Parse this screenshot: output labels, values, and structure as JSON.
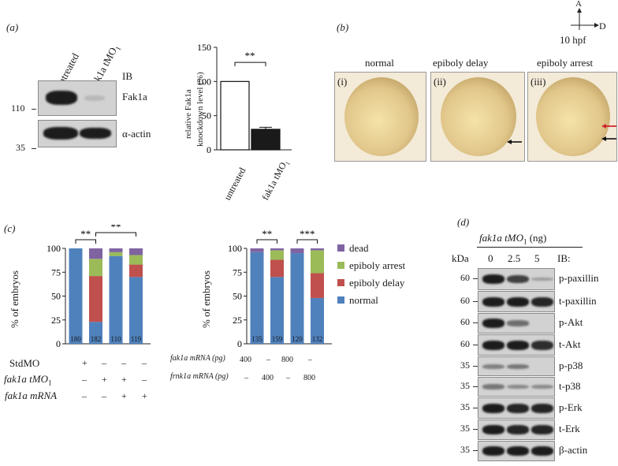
{
  "panel_a": {
    "label": "(a)",
    "blot": {
      "col_labels": [
        "untreated",
        "fak1a tMO"
      ],
      "col2_sub": "1",
      "ib_label": "IB",
      "row_labels": [
        "Fak1a",
        "α-actin"
      ],
      "mw_markers": [
        "110",
        "35"
      ]
    },
    "chart": {
      "ylabel_line1": "relative Fak1a",
      "ylabel_line2": "knockdown level (%)",
      "significance": "**"
    }
  },
  "panel_b": {
    "label": "(b)",
    "axis_up": "A",
    "axis_right": "D",
    "stage": "10 hpf",
    "titles": [
      "normal",
      "epiboly delay",
      "epiboly arrest"
    ],
    "numerals": [
      "(i)",
      "(ii)",
      "(iii)"
    ]
  },
  "panel_c": {
    "label": "(c)",
    "ylabel": "% of embryos",
    "colors": {
      "dead": "#8064a2",
      "arrest": "#9bbb59",
      "delay": "#c0504d",
      "normal": "#4f81bd"
    },
    "legend": [
      "dead",
      "epiboly arrest",
      "epiboly delay",
      "normal"
    ],
    "left": {
      "sig": [
        "**",
        "**"
      ],
      "row_labels": [
        "StdMO",
        "fak1a tMO",
        "fak1a mRNA"
      ],
      "row2_sub": "1",
      "rows": [
        [
          "+",
          "–",
          "–",
          "–"
        ],
        [
          "–",
          "+",
          "+",
          "–"
        ],
        [
          "–",
          "–",
          "+",
          "+"
        ]
      ]
    },
    "right": {
      "sig": [
        "**",
        "***"
      ],
      "row_labels": [
        "fak1a mRNA (pg)",
        "frnk1a mRNA (pg)"
      ],
      "rows": [
        [
          "400",
          "–",
          "800",
          "–"
        ],
        [
          "–",
          "400",
          "–",
          "800"
        ]
      ]
    }
  },
  "panel_d": {
    "label": "(d)",
    "header": "fak1a tMO",
    "header_sub": "1",
    "header_unit": " (ng)",
    "kda": "kDa",
    "doses": [
      "0",
      "2.5",
      "5"
    ],
    "ib": "IB:",
    "rows": [
      {
        "mw": "60",
        "name": "p-paxillin"
      },
      {
        "mw": "60",
        "name": "t-paxillin"
      },
      {
        "mw": "60",
        "name": "p-Akt"
      },
      {
        "mw": "60",
        "name": "t-Akt"
      },
      {
        "mw": "35",
        "name": "p-p38"
      },
      {
        "mw": "35",
        "name": "t-p38"
      },
      {
        "mw": "35",
        "name": "p-Erk"
      },
      {
        "mw": "35",
        "name": "t-Erk"
      },
      {
        "mw": "35",
        "name": "β-actin"
      }
    ]
  },
  "chart_data": [
    {
      "type": "bar",
      "categories": [
        "untreated",
        "fak1a tMO1"
      ],
      "values": [
        100,
        30
      ],
      "errors": [
        0,
        3
      ],
      "colors": [
        "#ffffff",
        "#1a1a1a"
      ],
      "ylabel": "relative Fak1a knockdown level (%)",
      "yticks": [
        0,
        50,
        100,
        150
      ],
      "ylim": [
        0,
        150
      ]
    },
    {
      "type": "bar",
      "stacked": true,
      "n": [
        180,
        182,
        110,
        119
      ],
      "series": [
        {
          "name": "normal",
          "values": [
            100,
            23,
            92,
            70
          ]
        },
        {
          "name": "epiboly delay",
          "values": [
            0,
            48,
            0,
            13
          ]
        },
        {
          "name": "epiboly arrest",
          "values": [
            0,
            18,
            4,
            10
          ]
        },
        {
          "name": "dead",
          "values": [
            0,
            11,
            4,
            7
          ]
        }
      ],
      "ylabel": "% of embryos",
      "yticks": [
        0,
        25,
        50,
        75,
        100
      ],
      "ylim": [
        0,
        100
      ]
    },
    {
      "type": "bar",
      "stacked": true,
      "n": [
        135,
        159,
        120,
        132
      ],
      "series": [
        {
          "name": "normal",
          "values": [
            96,
            70,
            95,
            48
          ]
        },
        {
          "name": "epiboly delay",
          "values": [
            0,
            18,
            0,
            26
          ]
        },
        {
          "name": "epiboly arrest",
          "values": [
            0,
            10,
            0,
            24
          ]
        },
        {
          "name": "dead",
          "values": [
            4,
            2,
            5,
            2
          ]
        }
      ],
      "ylabel": "% of embryos",
      "yticks": [
        0,
        25,
        50,
        75,
        100
      ],
      "ylim": [
        0,
        100
      ]
    }
  ]
}
